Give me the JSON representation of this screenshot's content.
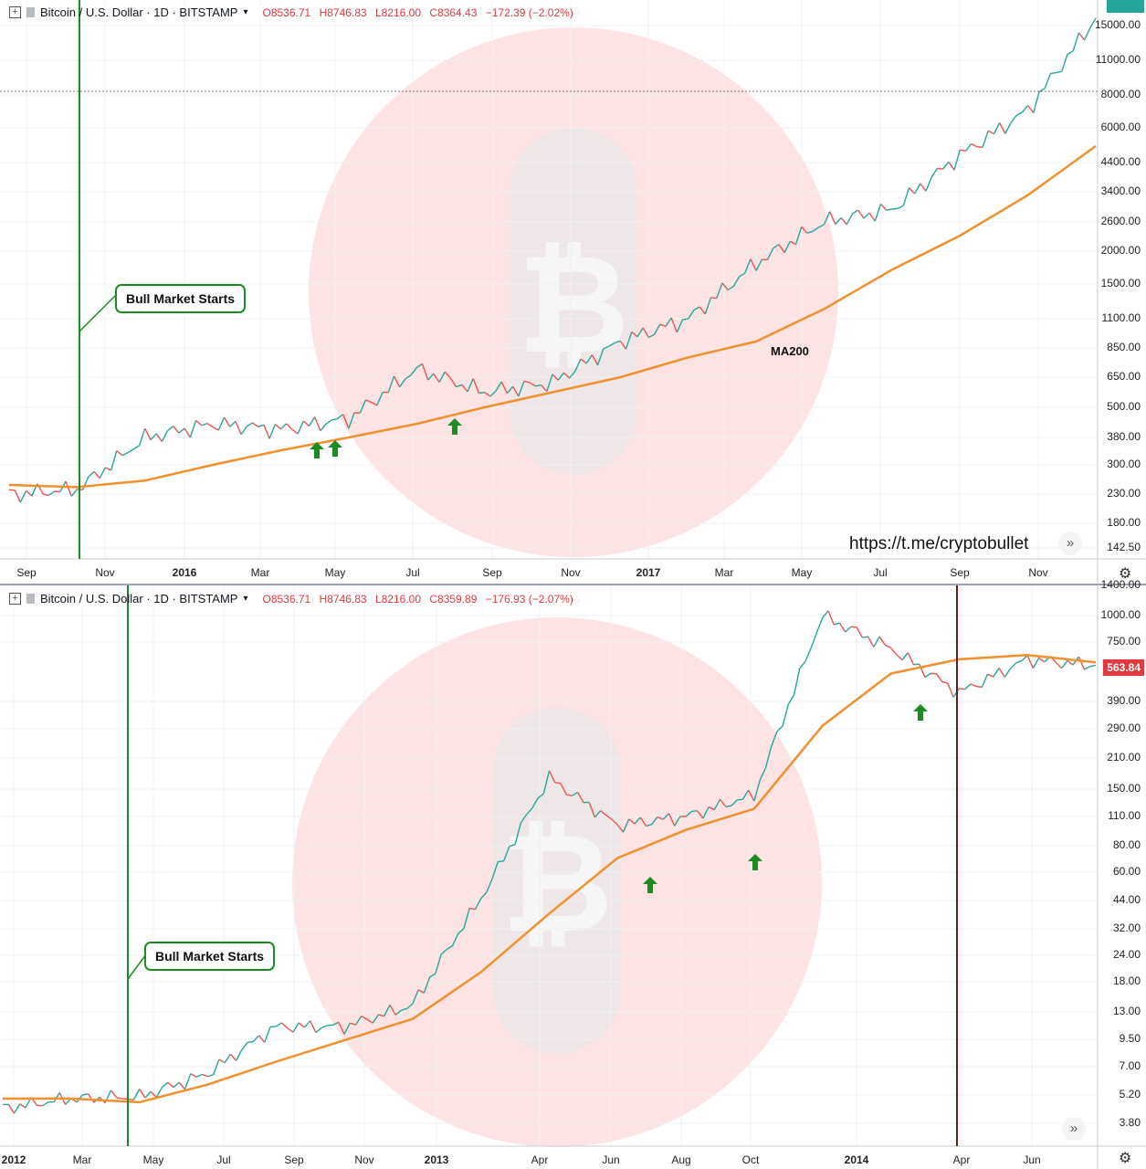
{
  "top": {
    "header": {
      "title": "Bitcoin / U.S. Dollar · 1D · BITSTAMP",
      "open": "O8536.71",
      "high": "H8746.83",
      "low": "L8216.00",
      "close": "C8364.43",
      "change": "−172.39 (−2.02%)"
    },
    "callout": "Bull Market Starts",
    "ma_label": "MA200",
    "url": "https://t.me/cryptobullet",
    "nav_icon": "»",
    "y_ticks": [
      "15000.00",
      "11000.00",
      "8000.00",
      "6000.00",
      "4400.00",
      "3400.00",
      "2600.00",
      "2000.00",
      "1500.00",
      "1100.00",
      "850.00",
      "650.00",
      "500.00",
      "380.00",
      "300.00",
      "230.00",
      "180.00",
      "142.50"
    ],
    "x_ticks": [
      "Sep",
      "Nov",
      "2016",
      "Mar",
      "May",
      "Jul",
      "Sep",
      "Nov",
      "2017",
      "Mar",
      "May",
      "Jul",
      "Sep",
      "Nov"
    ],
    "year_ticks": [
      "2016",
      "2017"
    ]
  },
  "bottom": {
    "header": {
      "title": "Bitcoin / U.S. Dollar · 1D · BITSTAMP",
      "open": "O8536.71",
      "high": "H8746.83",
      "low": "L8216.00",
      "close": "C8359.89",
      "change": "−176.93 (−2.07%)"
    },
    "callout": "Bull Market Starts",
    "price_tag": "563.84",
    "nav_icon": "»",
    "y_ticks": [
      "1400.00",
      "1000.00",
      "750.00",
      "390.00",
      "290.00",
      "210.00",
      "150.00",
      "110.00",
      "80.00",
      "60.00",
      "44.00",
      "32.00",
      "24.00",
      "18.00",
      "13.00",
      "9.50",
      "7.00",
      "5.20",
      "3.80"
    ],
    "x_ticks": [
      "2012",
      "Mar",
      "May",
      "Jul",
      "Sep",
      "Nov",
      "2013",
      "Apr",
      "Jun",
      "Aug",
      "Oct",
      "2014",
      "Apr",
      "Jun"
    ],
    "year_ticks": [
      "2012",
      "2013",
      "2014"
    ]
  },
  "colors": {
    "ma": "#f0902e",
    "up": "#26a69a",
    "down": "#ef5350",
    "marker": "#1e8a24",
    "watermark": "#fde3e3"
  },
  "chart_data": [
    {
      "type": "line",
      "title": "Bitcoin / U.S. Dollar · 1D · BITSTAMP (2015–2017)",
      "scale": "log",
      "x": [
        "2015-08",
        "2015-10",
        "2015-11",
        "2016-01",
        "2016-03",
        "2016-05",
        "2016-06",
        "2016-08",
        "2016-10",
        "2017-01",
        "2017-03",
        "2017-05",
        "2017-06",
        "2017-08",
        "2017-09",
        "2017-11",
        "2017-12"
      ],
      "series": [
        {
          "name": "Price",
          "values": [
            230,
            240,
            380,
            430,
            410,
            450,
            700,
            570,
            620,
            900,
            1100,
            1800,
            2600,
            2900,
            4700,
            7000,
            16000
          ]
        },
        {
          "name": "MA200",
          "values": [
            250,
            245,
            260,
            300,
            340,
            380,
            430,
            500,
            570,
            650,
            780,
            900,
            1200,
            1700,
            2300,
            3300,
            5100
          ]
        }
      ],
      "annotations": [
        "Bull Market Starts",
        "MA200"
      ],
      "ylim": [
        142.5,
        16500
      ]
    },
    {
      "type": "line",
      "title": "Bitcoin / U.S. Dollar · 1D · BITSTAMP (2012–2014)",
      "scale": "log",
      "x": [
        "2012-01",
        "2012-03",
        "2012-05",
        "2012-07",
        "2012-09",
        "2012-11",
        "2013-01",
        "2013-03",
        "2013-04",
        "2013-06",
        "2013-08",
        "2013-10",
        "2013-12",
        "2014-02",
        "2014-04",
        "2014-06",
        "2014-07"
      ],
      "series": [
        {
          "name": "Price",
          "values": [
            4.5,
            5.0,
            5.1,
            6.5,
            11,
            11,
            14,
            45,
            170,
            100,
            110,
            140,
            1000,
            700,
            430,
            620,
            580
          ]
        },
        {
          "name": "MA200",
          "values": [
            5.0,
            5.0,
            4.8,
            5.8,
            7.4,
            9.4,
            12,
            20,
            38,
            70,
            95,
            120,
            300,
            530,
            620,
            650,
            600
          ]
        }
      ],
      "annotations": [
        "Bull Market Starts"
      ],
      "last_price": 563.84,
      "ylim": [
        3.3,
        1450
      ]
    }
  ]
}
